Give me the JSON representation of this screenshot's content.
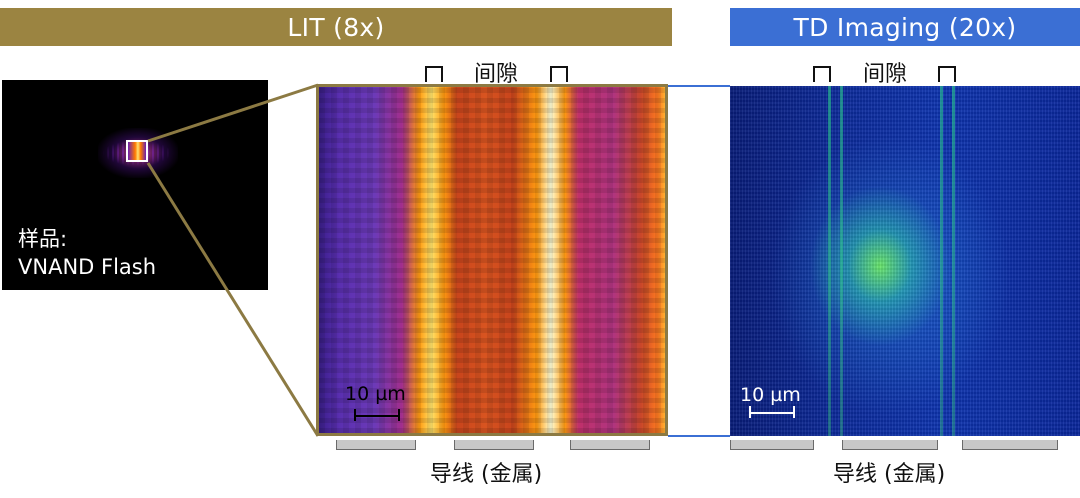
{
  "lit": {
    "banner": "LIT (8x)",
    "gap_label": "间隙",
    "scale_label": "10 µm",
    "metal_label": "导线 (金属)"
  },
  "td": {
    "banner": "TD Imaging (20x)",
    "gap_label": "间隙",
    "scale_label": "10 µm",
    "metal_label": "导线 (金属)"
  },
  "sample": {
    "line1": "样品:",
    "line2": "VNAND Flash"
  },
  "colors": {
    "lit_banner": "#9b8441",
    "td_banner": "#3b6fd4",
    "zoom_lines": "#8c7a43",
    "connector_lines": "#3b6fd4"
  }
}
